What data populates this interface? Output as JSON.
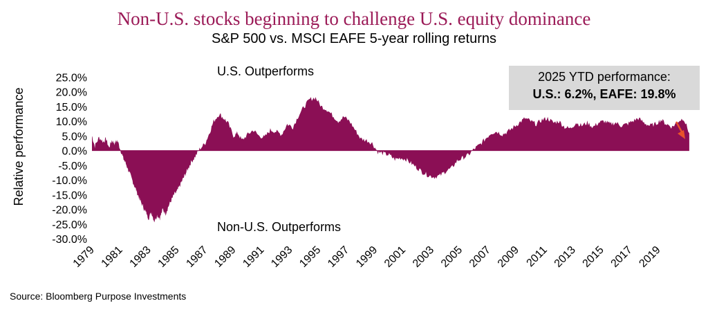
{
  "colors": {
    "title": "#9b1a57",
    "area": "#8b0f55",
    "arrow": "#e8532a",
    "callout_bg": "#d9d9d9"
  },
  "callout": {
    "line1": "2025 YTD performance:",
    "line2": "U.S.: 6.2%, EAFE: 19.8%"
  },
  "source": "Source: Bloomberg Purpose Investments",
  "chart_data": {
    "type": "area",
    "title": "Non-U.S. stocks beginning to challenge U.S. equity dominance",
    "subtitle": "S&P 500 vs. MSCI EAFE 5-year rolling returns",
    "ylabel": "Relative performance",
    "xlabel": "",
    "ylim": [
      -30,
      25
    ],
    "xlim": [
      1979,
      2021.5
    ],
    "y_ticks": [
      "25.0%",
      "20.0%",
      "15.0%",
      "10.0%",
      "5.0%",
      "0.0%",
      "-5.0%",
      "-10.0%",
      "-15.0%",
      "-20.0%",
      "-25.0%",
      "-30.0%"
    ],
    "y_tick_values": [
      25,
      20,
      15,
      10,
      5,
      0,
      -5,
      -10,
      -15,
      -20,
      -25,
      -30
    ],
    "x_ticks": [
      "1979",
      "1981",
      "1983",
      "1985",
      "1987",
      "1989",
      "1991",
      "1993",
      "1995",
      "1997",
      "1999",
      "2001",
      "2003",
      "2005",
      "2007",
      "2009",
      "2011",
      "2013",
      "2015",
      "2017",
      "2019"
    ],
    "x_tick_values": [
      1979,
      1981,
      1983,
      1985,
      1987,
      1989,
      1991,
      1993,
      1995,
      1997,
      1999,
      2001,
      2003,
      2005,
      2007,
      2009,
      2011,
      2013,
      2015,
      2017,
      2019
    ],
    "region_labels": {
      "top": "U.S. Outperforms",
      "bottom": "Non-U.S. Outperforms"
    },
    "grid": false,
    "x": [
      1979.0,
      1979.2,
      1979.5,
      1979.8,
      1980.0,
      1980.2,
      1980.4,
      1980.6,
      1980.8,
      1981.0,
      1981.2,
      1981.4,
      1981.6,
      1981.8,
      1982.0,
      1982.2,
      1982.4,
      1982.6,
      1982.8,
      1983.0,
      1983.2,
      1983.4,
      1983.6,
      1983.8,
      1984.0,
      1984.2,
      1984.4,
      1984.6,
      1984.8,
      1985.0,
      1985.2,
      1985.4,
      1985.6,
      1985.8,
      1986.0,
      1986.3,
      1986.6,
      1987.0,
      1987.3,
      1987.6,
      1988.0,
      1988.3,
      1988.6,
      1989.0,
      1989.3,
      1989.6,
      1990.0,
      1990.4,
      1990.8,
      1991.2,
      1991.6,
      1992.0,
      1992.4,
      1992.8,
      1993.2,
      1993.6,
      1994.0,
      1994.4,
      1994.8,
      1995.2,
      1995.6,
      1996.0,
      1996.4,
      1996.8,
      1997.2,
      1997.6,
      1998.0,
      1998.4,
      1998.8,
      1999.2,
      1999.6,
      2000.0,
      2000.4,
      2000.8,
      2001.2,
      2001.6,
      2002.0,
      2002.4,
      2002.8,
      2003.2,
      2003.6,
      2004.0,
      2004.4,
      2004.8,
      2005.2,
      2005.6,
      2006.0,
      2006.4,
      2006.8,
      2007.2,
      2007.6,
      2008.0,
      2008.4,
      2008.8,
      2009.2,
      2009.6,
      2010.0,
      2010.4,
      2010.8,
      2011.2,
      2011.6,
      2012.0,
      2012.4,
      2012.8,
      2013.2,
      2013.6,
      2014.0,
      2014.4,
      2014.8,
      2015.2,
      2015.6,
      2016.0,
      2016.4,
      2016.8,
      2017.2,
      2017.6,
      2018.0,
      2018.4,
      2018.8,
      2019.2,
      2019.6,
      2020.0,
      2020.4,
      2020.8,
      2021.2
    ],
    "y": [
      5.0,
      1.5,
      4.5,
      3.0,
      4.0,
      1.0,
      3.5,
      2.5,
      3.5,
      0.5,
      -2.5,
      -4.5,
      -7.0,
      -9.5,
      -12.0,
      -14.5,
      -17.0,
      -19.0,
      -21.0,
      -23.0,
      -21.0,
      -24.0,
      -22.0,
      -23.0,
      -20.0,
      -21.5,
      -19.0,
      -17.0,
      -15.0,
      -14.0,
      -12.0,
      -10.0,
      -8.0,
      -6.0,
      -4.0,
      -2.0,
      0.5,
      2.5,
      6.0,
      10.0,
      12.5,
      11.0,
      9.5,
      5.0,
      6.0,
      3.5,
      5.5,
      7.0,
      5.0,
      4.5,
      7.0,
      6.5,
      5.5,
      9.0,
      8.0,
      12.0,
      15.0,
      17.5,
      18.0,
      15.0,
      14.0,
      12.0,
      10.0,
      11.5,
      10.0,
      7.0,
      4.0,
      3.5,
      2.5,
      -0.5,
      -1.0,
      -1.5,
      -3.0,
      -2.5,
      -3.0,
      -4.5,
      -6.0,
      -7.5,
      -8.5,
      -9.0,
      -8.5,
      -7.0,
      -6.0,
      -3.5,
      -2.5,
      -1.5,
      0.5,
      2.0,
      4.0,
      6.0,
      6.5,
      5.5,
      6.5,
      8.0,
      9.5,
      11.0,
      10.0,
      9.0,
      10.5,
      11.0,
      9.5,
      10.0,
      8.0,
      7.5,
      9.5,
      8.5,
      9.5,
      8.0,
      9.5,
      10.0,
      9.0,
      9.5,
      8.5,
      9.0,
      10.0,
      11.0,
      9.5,
      8.5,
      9.0,
      10.5,
      9.0,
      8.0,
      10.0,
      11.0,
      6.0
    ],
    "annotations": [
      {
        "text": "2025 YTD performance:",
        "line": 1
      },
      {
        "text": "U.S.: 6.2%, EAFE: 19.8%",
        "line": 2
      }
    ]
  }
}
